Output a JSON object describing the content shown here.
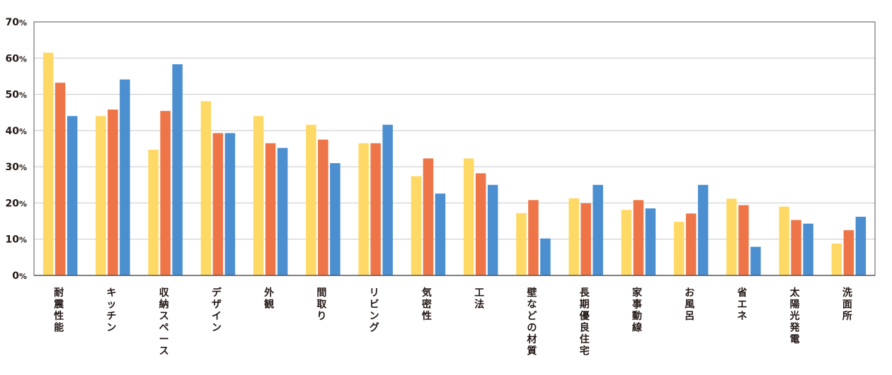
{
  "chart_data": {
    "type": "bar",
    "categories": [
      "耐震性能",
      "キッチン",
      "収納スペース",
      "デザイン",
      "外観",
      "間取り",
      "リビング",
      "気密性",
      "工法",
      "壁などの材質",
      "長期優良住宅",
      "家事動線",
      "お風呂",
      "省エネ",
      "太陽光発電",
      "洗面所"
    ],
    "series": [
      {
        "color": "#FFD966",
        "values": [
          61.5,
          44,
          34.7,
          48.1,
          44,
          41.6,
          36.5,
          27.4,
          32.3,
          17.2,
          21.3,
          18.1,
          14.8,
          21.2,
          19,
          8.8
        ]
      },
      {
        "color": "#EE7548",
        "values": [
          53.2,
          45.8,
          45.4,
          39.3,
          36.5,
          37.5,
          36.5,
          32.3,
          28.2,
          20.8,
          19.9,
          20.8,
          17.1,
          19.4,
          15.3,
          12.5
        ]
      },
      {
        "color": "#4B8FD0",
        "values": [
          44,
          54.1,
          58.3,
          39.3,
          35.2,
          31,
          41.6,
          22.6,
          25,
          10.2,
          25,
          18.5,
          25,
          7.9,
          14.3,
          16.2
        ]
      }
    ],
    "y_ticks": [
      {
        "num": "70",
        "unit": "%"
      },
      {
        "num": "60",
        "unit": "%"
      },
      {
        "num": "50",
        "unit": "%"
      },
      {
        "num": "40",
        "unit": "%"
      },
      {
        "num": "30",
        "unit": "%"
      },
      {
        "num": "20",
        "unit": "%"
      },
      {
        "num": "10",
        "unit": "%"
      },
      {
        "num": "0",
        "unit": "%"
      }
    ],
    "ylim": [
      0,
      70
    ],
    "grid": true,
    "colors": {
      "grid": "#c8c8c8",
      "axis": "#595757",
      "text": "#231815"
    }
  }
}
